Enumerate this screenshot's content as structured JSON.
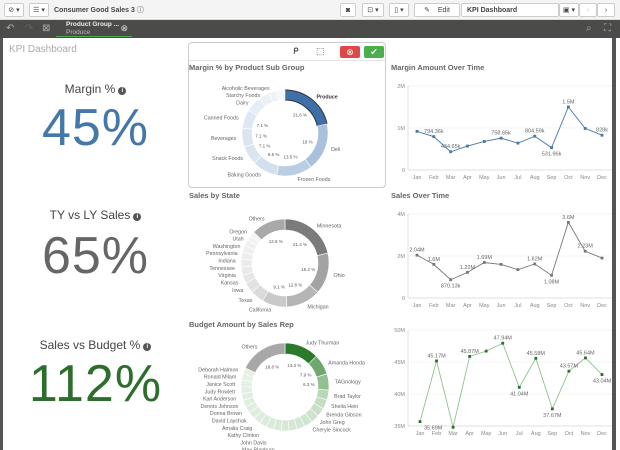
{
  "topbar": {
    "app_title": "Consumer Good Sales 3",
    "edit_label": "Edit",
    "sheet_name": "KPI Dashboard"
  },
  "selections": {
    "field": "Product Group ...",
    "value": "Produce"
  },
  "sheet": {
    "title": "KPI Dashboard"
  },
  "kpis": [
    {
      "label": "Margin %",
      "value": "45%",
      "color": "#4477aa"
    },
    {
      "label": "TY vs LY Sales",
      "value": "65%",
      "color": "#666666"
    },
    {
      "label": "Sales vs Budget %",
      "value": "112%",
      "color": "#2d6e2d"
    }
  ],
  "chart_data": [
    {
      "type": "pie",
      "title": "Margin % by Product Sub Group",
      "selected": "Produce",
      "slices": [
        {
          "label": "Produce",
          "value": 21.6,
          "pct_label": "21.6 %",
          "color": "#3e6fa8"
        },
        {
          "label": "Deli",
          "value": 18,
          "pct_label": "18 %",
          "color": "#a9c1dc"
        },
        {
          "label": "Frozen Foods",
          "value": 13.5,
          "pct_label": "13.5 %",
          "color": "#b9cde3"
        },
        {
          "label": "Baking Goods",
          "value": 9.5,
          "pct_label": "9.5 %",
          "color": "#d3dfec"
        },
        {
          "label": "Snack Foods",
          "value": 7.1,
          "pct_label": "7.1 %",
          "color": "#dbe5f0"
        },
        {
          "label": "Beverages",
          "value": 7.1,
          "pct_label": "7.1 %",
          "color": "#dbe5f0"
        },
        {
          "label": "Canned Foods",
          "value": 7.1,
          "pct_label": "7.1 %",
          "color": "#dfe8f2"
        },
        {
          "label": "Dairy",
          "value": 6,
          "pct_label": "",
          "color": "#e6edf5"
        },
        {
          "label": "Starchy Foods",
          "value": 4,
          "pct_label": "",
          "color": "#ebf0f7"
        },
        {
          "label": "Alcoholic Beverages",
          "value": 3,
          "pct_label": "",
          "color": "#eff3f8"
        },
        {
          "label": "",
          "value": 3.1,
          "pct_label": "",
          "color": "#f3f6fa"
        }
      ]
    },
    {
      "type": "pie",
      "title": "Sales by State",
      "slices": [
        {
          "label": "Minnesota",
          "value": 21.4,
          "pct_label": "21.4 %",
          "color": "#7b7b7b"
        },
        {
          "label": "Ohio",
          "value": 15.2,
          "pct_label": "15.2 %",
          "color": "#a3a3a3"
        },
        {
          "label": "Michigan",
          "value": 12.8,
          "pct_label": "12.8 %",
          "color": "#b5b5b5"
        },
        {
          "label": "California",
          "value": 9.1,
          "pct_label": "9.1 %",
          "color": "#c9c9c9"
        },
        {
          "label": "Texas",
          "value": 5,
          "pct_label": "",
          "color": "#dadada"
        },
        {
          "label": "Iowa",
          "value": 4,
          "pct_label": "",
          "color": "#e2e2e2"
        },
        {
          "label": "Kansas",
          "value": 3,
          "pct_label": "",
          "color": "#e6e6e6"
        },
        {
          "label": "Virginia",
          "value": 3,
          "pct_label": "",
          "color": "#e9e9e9"
        },
        {
          "label": "Tennessee",
          "value": 3,
          "pct_label": "",
          "color": "#ebebeb"
        },
        {
          "label": "Indiana",
          "value": 2.5,
          "pct_label": "",
          "color": "#ededed"
        },
        {
          "label": "Pennsylvania",
          "value": 2.5,
          "pct_label": "",
          "color": "#efefef"
        },
        {
          "label": "Washington",
          "value": 2.3,
          "pct_label": "",
          "color": "#f1f1f1"
        },
        {
          "label": "Utah",
          "value": 1.8,
          "pct_label": "",
          "color": "#f3f3f3"
        },
        {
          "label": "Oregon",
          "value": 1.8,
          "pct_label": "",
          "color": "#f4f4f4"
        },
        {
          "label": "Others",
          "value": 12.6,
          "pct_label": "12.6 %",
          "color": "#a9a9a9"
        }
      ]
    },
    {
      "type": "pie",
      "title": "Budget Amount by Sales Rep",
      "slices": [
        {
          "label": "Judy Thurman",
          "value": 13.3,
          "pct_label": "13.3 %",
          "color": "#2b7a2b"
        },
        {
          "label": "Amanda Honda",
          "value": 7.9,
          "pct_label": "7.9 %",
          "color": "#6fa86f"
        },
        {
          "label": "TAGnology",
          "value": 6.3,
          "pct_label": "6.3 %",
          "color": "#93c093"
        },
        {
          "label": "Brad Taylor",
          "value": 3.8,
          "pct_label": "",
          "color": "#b8d8b8"
        },
        {
          "label": "Sheila Hein",
          "value": 3.6,
          "pct_label": "",
          "color": "#c3dec3"
        },
        {
          "label": "Brenda Gibson",
          "value": 3.4,
          "pct_label": "",
          "color": "#c9e1c9"
        },
        {
          "label": "John Greg",
          "value": 3.3,
          "pct_label": "",
          "color": "#cde3cd"
        },
        {
          "label": "Cheryle Sincock",
          "value": 3.2,
          "pct_label": "",
          "color": "#d0e5d0"
        },
        {
          "label": "",
          "value": 3.1,
          "pct_label": "",
          "color": "#d3e7d3"
        },
        {
          "label": "",
          "value": 3.1,
          "pct_label": "",
          "color": "#d5e8d5"
        },
        {
          "label": "",
          "value": 3,
          "pct_label": "",
          "color": "#d7e9d7"
        },
        {
          "label": "Max Blagburn",
          "value": 3,
          "pct_label": "",
          "color": "#d9ead9"
        },
        {
          "label": "John Davis",
          "value": 2.9,
          "pct_label": "",
          "color": "#dbebdb"
        },
        {
          "label": "Kathy Clinton",
          "value": 2.9,
          "pct_label": "",
          "color": "#dcecdc"
        },
        {
          "label": "Amalia Craig",
          "value": 2.8,
          "pct_label": "",
          "color": "#ddeddd"
        },
        {
          "label": "David Laychak",
          "value": 2.8,
          "pct_label": "",
          "color": "#deeede"
        },
        {
          "label": "Donna Brown",
          "value": 2.7,
          "pct_label": "",
          "color": "#dfeedf"
        },
        {
          "label": "Dennis Johnson",
          "value": 2.7,
          "pct_label": "",
          "color": "#e0efe0"
        },
        {
          "label": "Karl Anderson",
          "value": 2.6,
          "pct_label": "",
          "color": "#e1efe1"
        },
        {
          "label": "Judy Rowlett",
          "value": 2.6,
          "pct_label": "",
          "color": "#e2f0e2"
        },
        {
          "label": "Janice Scott",
          "value": 2.5,
          "pct_label": "",
          "color": "#e3f0e3"
        },
        {
          "label": "Ronald Milam",
          "value": 2.5,
          "pct_label": "",
          "color": "#e4f1e4"
        },
        {
          "label": "Deborah Halmon",
          "value": 2.4,
          "pct_label": "",
          "color": "#e5f1e5"
        },
        {
          "label": "Others",
          "value": 18.8,
          "pct_label": "18.8 %",
          "color": "#a8a8a8"
        }
      ]
    },
    {
      "type": "line",
      "title": "Margin Amount Over Time",
      "color": "#4477aa",
      "ylim": [
        0,
        2000000
      ],
      "yticks": [
        "0",
        "1M",
        "2M"
      ],
      "categories": [
        "Jan",
        "Feb",
        "Mar",
        "Apr",
        "May",
        "Jun",
        "Jul",
        "Aug",
        "Sep",
        "Oct",
        "Nov",
        "Dec"
      ],
      "values": [
        920000,
        794360,
        434650,
        570000,
        680000,
        758650,
        640000,
        804590,
        531960,
        1500000,
        990000,
        828000
      ],
      "labels": [
        "",
        "794.36k",
        "434.65k",
        "",
        "",
        "758.65k",
        "",
        "804.59k",
        "531.96k",
        "1.5M",
        "",
        "828k"
      ]
    },
    {
      "type": "line",
      "title": "Sales Over Time",
      "color": "#777777",
      "ylim": [
        0,
        4000000
      ],
      "yticks": [
        "0",
        "2M",
        "4M"
      ],
      "categories": [
        "Jan",
        "Feb",
        "Mar",
        "Apr",
        "May",
        "Jun",
        "Jul",
        "Aug",
        "Sep",
        "Oct",
        "Nov",
        "Dec"
      ],
      "values": [
        2040000,
        1600000,
        870130,
        1220000,
        1690000,
        1600000,
        1350000,
        1620000,
        1080000,
        3600000,
        2230000,
        1900000
      ],
      "labels": [
        "2.04M",
        "1.6M",
        "870.13k",
        "1.22M",
        "1.69M",
        "",
        "",
        "1.62M",
        "1.08M",
        "3.6M",
        "2.23M",
        ""
      ]
    },
    {
      "type": "line",
      "title": "",
      "color": "#8fc28f",
      "marker_color": "#2a6e2a",
      "ylim": [
        35000000,
        50000000
      ],
      "yticks": [
        "35M",
        "40M",
        "45M",
        "50M"
      ],
      "categories": [
        "Jan",
        "Feb",
        "Mar",
        "Apr",
        "May",
        "Jun",
        "Jul",
        "Aug",
        "Sep",
        "Oct",
        "Nov",
        "Dec"
      ],
      "values": [
        35690000,
        45170000,
        34800000,
        45870000,
        46700000,
        47940000,
        41040000,
        45580000,
        37670000,
        43570000,
        45640000,
        43040000
      ],
      "labels": [
        "35.69M",
        "45.17M",
        "",
        "45.87M",
        "",
        "47.94M",
        "41.04M",
        "45.58M",
        "37.67M",
        "43.57M",
        "45.64M",
        "43.04M"
      ]
    }
  ]
}
